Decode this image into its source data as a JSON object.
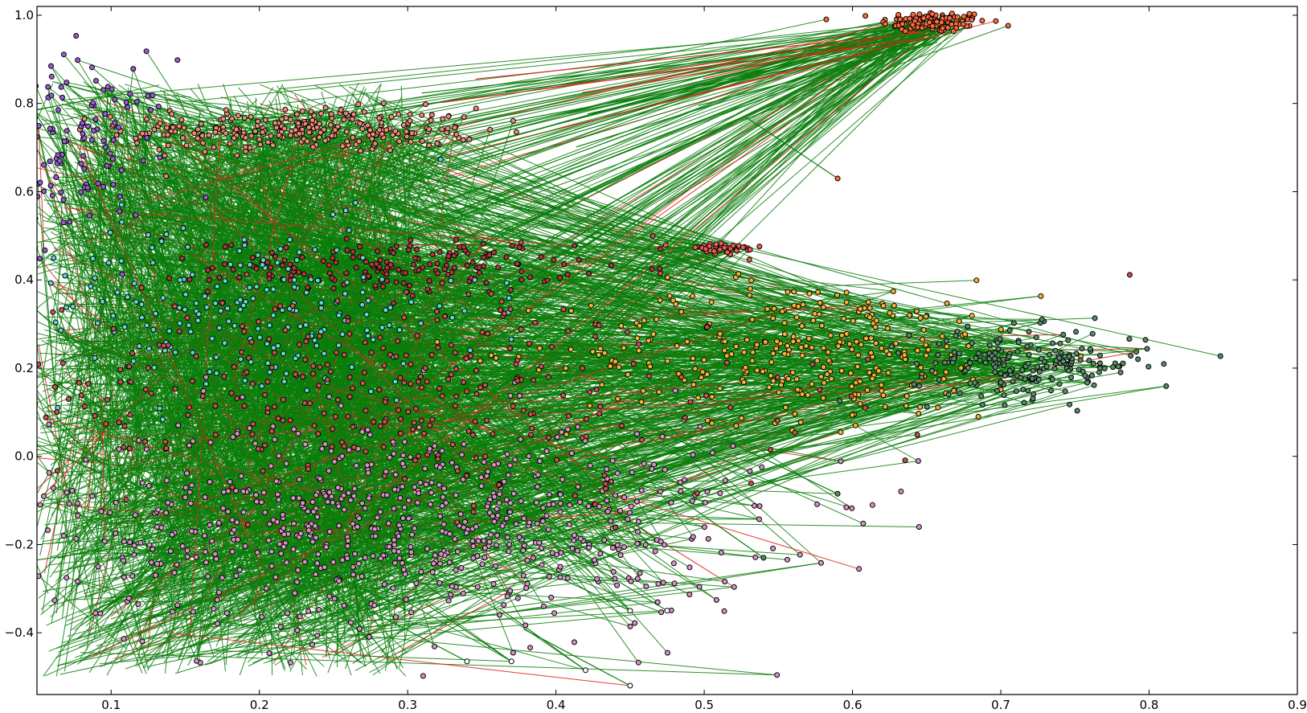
{
  "chart_data": {
    "type": "scatter",
    "title": "",
    "xlabel": "",
    "ylabel": "",
    "xlim": [
      0.05,
      0.9
    ],
    "ylim": [
      -0.54,
      1.02
    ],
    "x_ticks": [
      0.1,
      0.2,
      0.3,
      0.4,
      0.5,
      0.6,
      0.7,
      0.8,
      0.9
    ],
    "x_tick_labels": [
      "0.1",
      "0.2",
      "0.3",
      "0.4",
      "0.5",
      "0.6",
      "0.7",
      "0.8",
      "0.9"
    ],
    "y_ticks": [
      -0.4,
      -0.2,
      0.0,
      0.2,
      0.4,
      0.6,
      0.8,
      1.0
    ],
    "y_tick_labels": [
      "−0.4",
      "−0.2",
      "0.0",
      "0.2",
      "0.4",
      "0.6",
      "0.8",
      "1.0"
    ],
    "grid": false,
    "legend": "none",
    "edge_colors": {
      "green": "#0a7d0a",
      "red": "#e0261e"
    },
    "clusters": [
      {
        "color": "#ff6a3d",
        "center": [
          0.655,
          0.985
        ],
        "spread": [
          0.018,
          0.012
        ],
        "count": 120
      },
      {
        "color": "#f08878",
        "center": [
          0.23,
          0.74
        ],
        "spread": [
          0.06,
          0.025
        ],
        "count": 260
      },
      {
        "color": "#9b59d6",
        "center": [
          0.08,
          0.7
        ],
        "spread": [
          0.03,
          0.1
        ],
        "count": 120
      },
      {
        "color": "#b0353f",
        "center": [
          0.29,
          0.43
        ],
        "spread": [
          0.06,
          0.03
        ],
        "count": 180
      },
      {
        "color": "#f05a5a",
        "center": [
          0.51,
          0.47
        ],
        "spread": [
          0.015,
          0.008
        ],
        "count": 40
      },
      {
        "color": "#5fd6d0",
        "center": [
          0.19,
          0.33
        ],
        "spread": [
          0.08,
          0.1
        ],
        "count": 220
      },
      {
        "color": "#f5b030",
        "center": [
          0.57,
          0.24
        ],
        "spread": [
          0.08,
          0.08
        ],
        "count": 300
      },
      {
        "color": "#5a8a6a",
        "center": [
          0.72,
          0.21
        ],
        "spread": [
          0.04,
          0.04
        ],
        "count": 200
      },
      {
        "color": "#d890c8",
        "center": [
          0.3,
          -0.15
        ],
        "spread": [
          0.12,
          0.12
        ],
        "count": 700
      },
      {
        "color": "#c85050",
        "center": [
          0.28,
          0.15
        ],
        "spread": [
          0.14,
          0.12
        ],
        "count": 320
      }
    ],
    "outlier_points": [
      {
        "x": 0.59,
        "y": 0.63,
        "color": "#ff6a3d"
      },
      {
        "x": 0.59,
        "y": -0.085,
        "color": "#5a8a6a"
      },
      {
        "x": 0.54,
        "y": -0.23,
        "color": "#5a8a6a"
      },
      {
        "x": 0.34,
        "y": -0.465,
        "color": "#ffffff"
      },
      {
        "x": 0.37,
        "y": -0.465,
        "color": "#ffffff"
      },
      {
        "x": 0.42,
        "y": -0.485,
        "color": "#ffffff"
      },
      {
        "x": 0.45,
        "y": -0.52,
        "color": "#ffffff"
      },
      {
        "x": 0.475,
        "y": -0.35,
        "color": "#ffffff"
      },
      {
        "x": 0.45,
        "y": -0.35,
        "color": "#ffffff"
      }
    ]
  }
}
